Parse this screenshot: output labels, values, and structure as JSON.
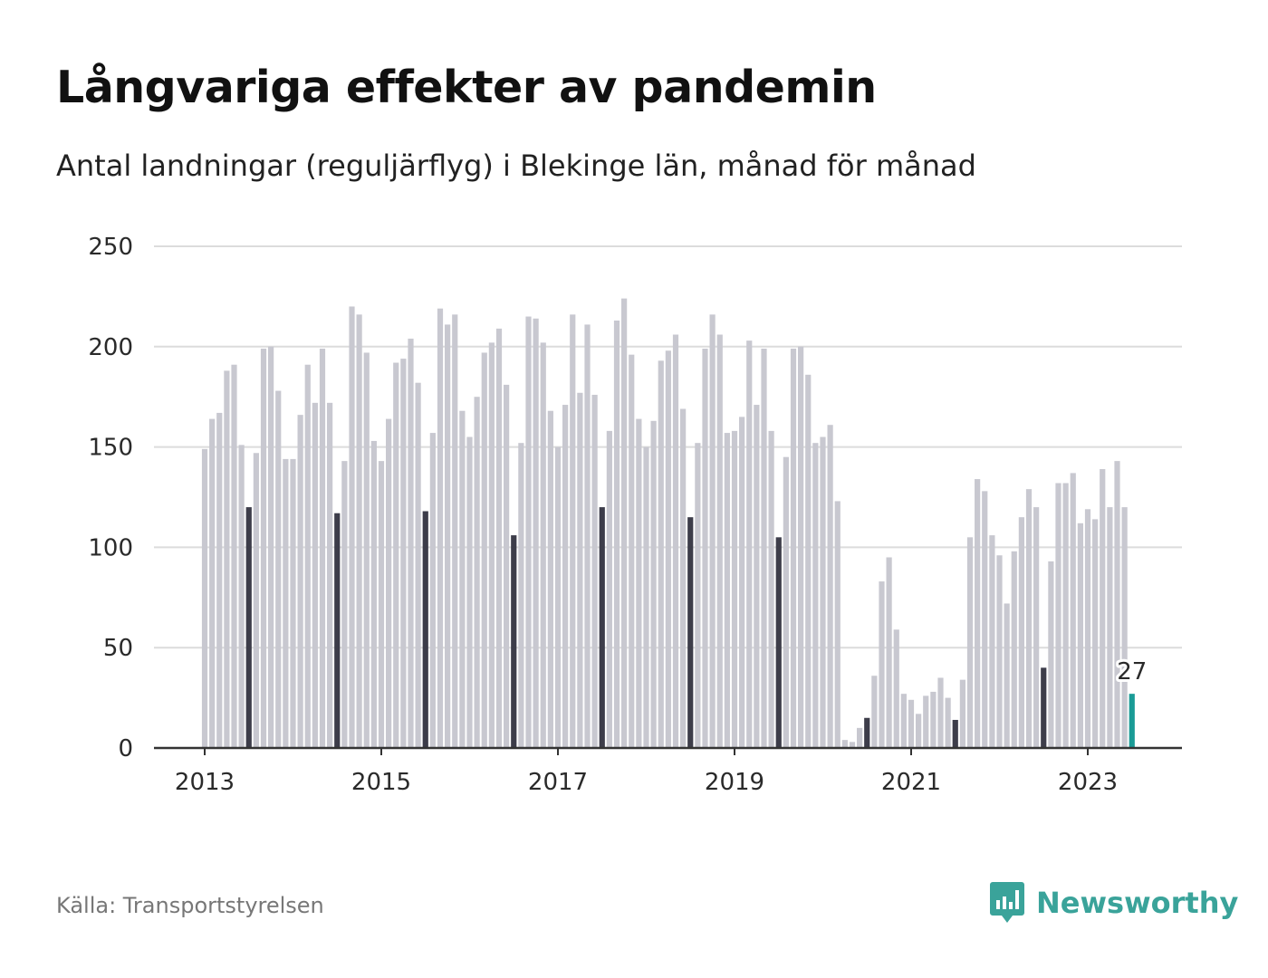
{
  "title": "Långvariga effekter av pandemin",
  "subtitle": "Antal landningar (reguljärflyg) i Blekinge län, månad för månad",
  "source": "Källa: Transportstyrelsen",
  "brand": {
    "name": "Newsworthy",
    "icon": "newsworthy-logo-icon",
    "color": "#3aa39a"
  },
  "colors": {
    "bar": "#c8c8d0",
    "highlight_month": "#3d3d4a",
    "latest": "#1a9b96",
    "grid": "#dcdcdc",
    "axis": "#333333"
  },
  "chart_data": {
    "type": "bar",
    "title": "Långvariga effekter av pandemin",
    "subtitle": "Antal landningar (reguljärflyg) i Blekinge län, månad för månad",
    "xlabel": "",
    "ylabel": "",
    "ylim": [
      0,
      250
    ],
    "yticks": [
      "0",
      "50",
      "100",
      "150",
      "200",
      "250"
    ],
    "xticks": [
      "2013",
      "2015",
      "2017",
      "2019",
      "2021",
      "2023"
    ],
    "grid": true,
    "start_month": "2013-01",
    "highlighted_month": "07",
    "values": [
      149,
      164,
      167,
      188,
      191,
      151,
      120,
      147,
      199,
      200,
      178,
      144,
      144,
      166,
      191,
      172,
      199,
      172,
      117,
      143,
      220,
      216,
      197,
      153,
      143,
      164,
      192,
      194,
      204,
      182,
      118,
      157,
      219,
      211,
      216,
      168,
      155,
      175,
      197,
      202,
      209,
      181,
      106,
      152,
      215,
      214,
      202,
      168,
      150,
      171,
      216,
      177,
      211,
      176,
      120,
      158,
      213,
      224,
      196,
      164,
      150,
      163,
      193,
      198,
      206,
      169,
      115,
      152,
      199,
      216,
      206,
      157,
      158,
      165,
      203,
      171,
      199,
      158,
      105,
      145,
      199,
      200,
      186,
      152,
      155,
      161,
      123,
      4,
      3,
      10,
      15,
      36,
      83,
      95,
      59,
      27,
      24,
      17,
      26,
      28,
      35,
      25,
      14,
      34,
      105,
      134,
      128,
      106,
      96,
      72,
      98,
      115,
      129,
      120,
      40,
      93,
      132,
      132,
      137,
      112,
      119,
      114,
      139,
      120,
      143,
      120,
      27
    ],
    "annotation": {
      "label": "27",
      "month": "2023-07",
      "value": 27
    }
  }
}
